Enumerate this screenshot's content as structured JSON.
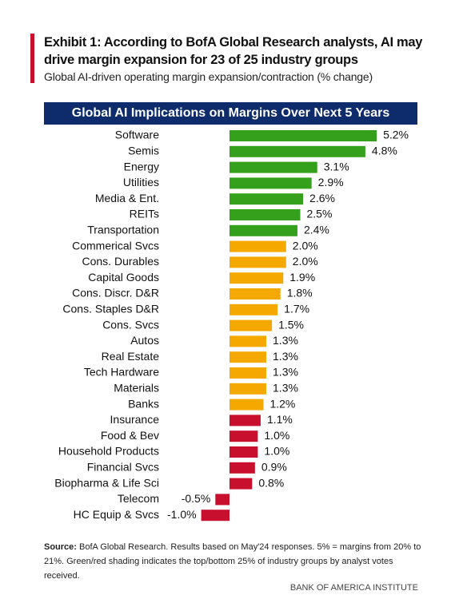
{
  "chart_data": {
    "type": "bar",
    "orientation": "horizontal",
    "exhibit_title": "Exhibit 1: According to BofA Global Research analysts, AI may drive margin expansion for 23 of 25 industry groups",
    "subtitle": "Global AI-driven operating margin expansion/contraction (% change)",
    "title": "Global AI Implications on Margins Over Next 5 Years",
    "categories": [
      "Software",
      "Semis",
      "Energy",
      "Utilities",
      "Media & Ent.",
      "REITs",
      "Transportation",
      "Commerical Svcs",
      "Cons. Durables",
      "Capital Goods",
      "Cons. Discr. D&R",
      "Cons. Staples D&R",
      "Cons. Svcs",
      "Autos",
      "Real Estate",
      "Tech Hardware",
      "Materials",
      "Banks",
      "Insurance",
      "Food & Bev",
      "Household Products",
      "Financial Svcs",
      "Biopharma & Life Sci",
      "Telecom",
      "HC Equip & Svcs"
    ],
    "values": [
      5.2,
      4.8,
      3.1,
      2.9,
      2.6,
      2.5,
      2.4,
      2.0,
      2.0,
      1.9,
      1.8,
      1.7,
      1.5,
      1.3,
      1.3,
      1.3,
      1.3,
      1.2,
      1.1,
      1.0,
      1.0,
      0.9,
      0.8,
      -0.5,
      -1.0
    ],
    "value_labels": [
      "5.2%",
      "4.8%",
      "3.1%",
      "2.9%",
      "2.6%",
      "2.5%",
      "2.4%",
      "2.0%",
      "2.0%",
      "1.9%",
      "1.8%",
      "1.7%",
      "1.5%",
      "1.3%",
      "1.3%",
      "1.3%",
      "1.3%",
      "1.2%",
      "1.1%",
      "1.0%",
      "1.0%",
      "0.9%",
      "0.8%",
      "-0.5%",
      "-1.0%"
    ],
    "colors": [
      "#34a01c",
      "#34a01c",
      "#34a01c",
      "#34a01c",
      "#34a01c",
      "#34a01c",
      "#34a01c",
      "#f5a800",
      "#f5a800",
      "#f5a800",
      "#f5a800",
      "#f5a800",
      "#f5a800",
      "#f5a800",
      "#f5a800",
      "#f5a800",
      "#f5a800",
      "#f5a800",
      "#c8102e",
      "#c8102e",
      "#c8102e",
      "#c8102e",
      "#c8102e",
      "#c8102e",
      "#c8102e"
    ],
    "source_label": "Source:",
    "source": "BofA Global Research. Results based on May'24 responses. 5% = margins from 20% to 21%. Green/red shading indicates the top/bottom 25% of industry groups by analyst votes received.",
    "footer": "BANK OF AMERICA INSTITUTE"
  }
}
